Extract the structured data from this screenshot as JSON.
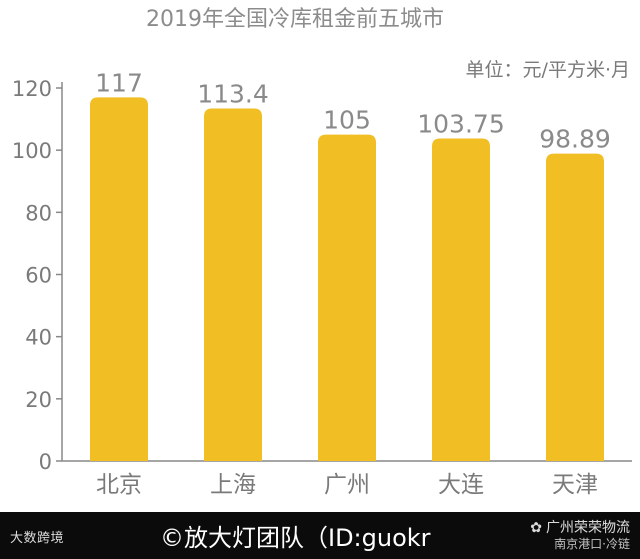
{
  "chart_data": {
    "type": "bar",
    "title": "2019年全国冷库租金前五城市",
    "unit_label": "单位：元/平方米·月",
    "categories": [
      "北京",
      "上海",
      "广州",
      "大连",
      "天津"
    ],
    "values": [
      117,
      113.4,
      105,
      103.75,
      98.89
    ],
    "value_labels": [
      "117",
      "113.4",
      "105",
      "103.75",
      "98.89"
    ],
    "ylim": [
      0,
      120
    ],
    "yticks": [
      0,
      20,
      40,
      60,
      80,
      100,
      120
    ],
    "bar_color": "#f1be24",
    "grid": false
  },
  "footer": {
    "logo_text": "大数跨境",
    "credit": "©放大灯团队（ID:guokr",
    "watermark_line1": "广州荣荣物流",
    "watermark_line2": "南京港口·冷链"
  }
}
